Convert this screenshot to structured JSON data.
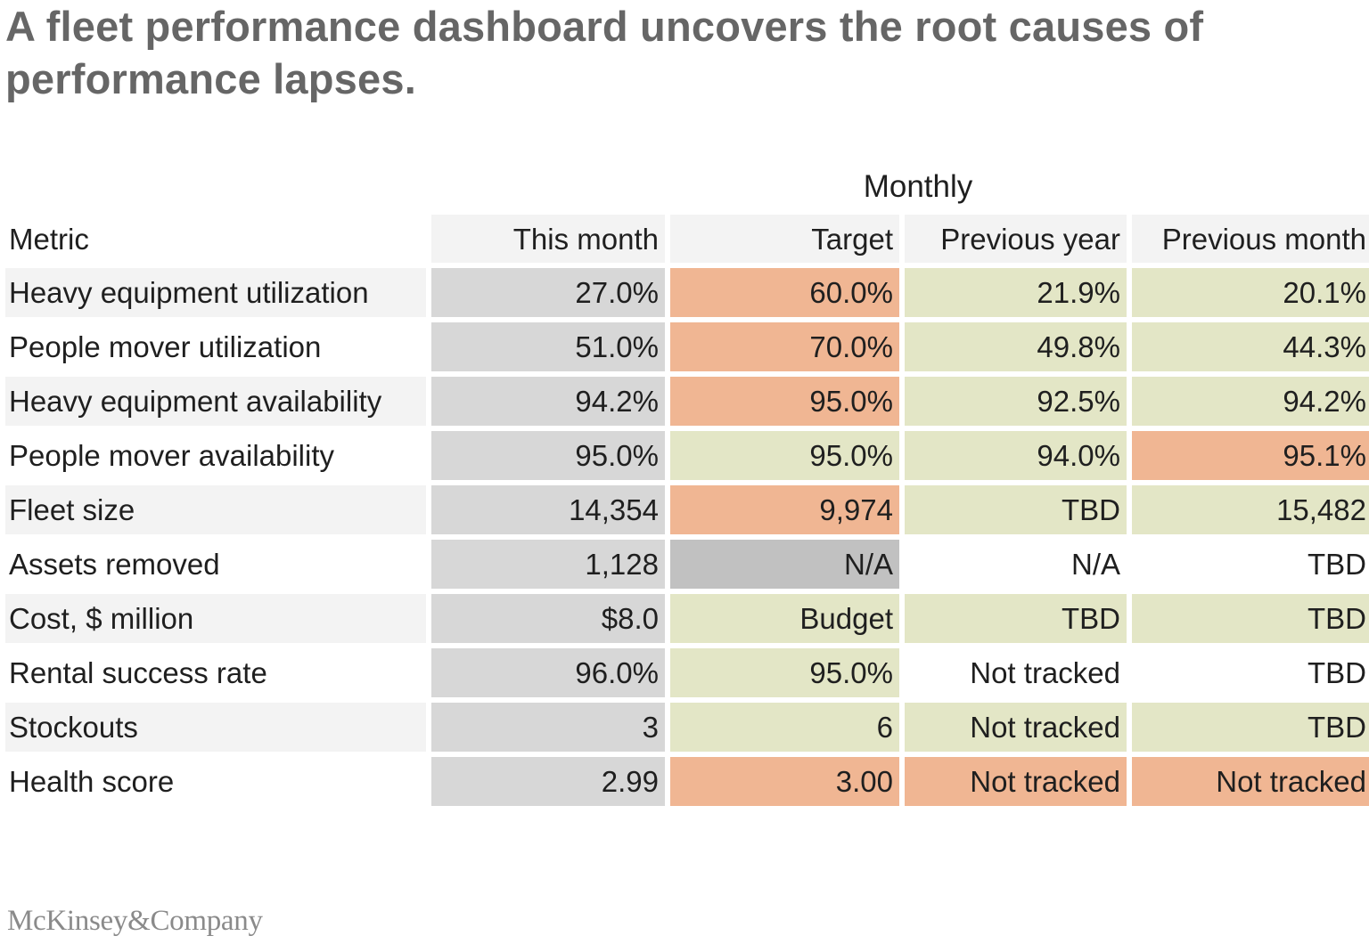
{
  "title": "A fleet performance dashboard uncovers the root causes of performance lapses.",
  "chart_data": {
    "type": "table",
    "group_header": "Monthly",
    "columns": [
      "Metric",
      "This month",
      "Target",
      "Previous year",
      "Previous month"
    ],
    "rows": [
      [
        "Heavy equipment utilization",
        "27.0%",
        "60.0%",
        "21.9%",
        "20.1%"
      ],
      [
        "People mover utilization",
        "51.0%",
        "70.0%",
        "49.8%",
        "44.3%"
      ],
      [
        "Heavy equipment availability",
        "94.2%",
        "95.0%",
        "92.5%",
        "94.2%"
      ],
      [
        "People mover availability",
        "95.0%",
        "95.0%",
        "94.0%",
        "95.1%"
      ],
      [
        "Fleet size",
        "14,354",
        "9,974",
        "TBD",
        "15,482"
      ],
      [
        "Assets removed",
        "1,128",
        "N/A",
        "N/A",
        "TBD"
      ],
      [
        "Cost, $ million",
        "$8.0",
        "Budget",
        "TBD",
        "TBD"
      ],
      [
        "Rental success rate",
        "96.0%",
        "95.0%",
        "Not tracked",
        "TBD"
      ],
      [
        "Stockouts",
        "3",
        "6",
        "Not tracked",
        "TBD"
      ],
      [
        "Health score",
        "2.99",
        "3.00",
        "Not tracked",
        "Not tracked"
      ]
    ],
    "cell_status": [
      [
        "grey",
        "orange",
        "green",
        "green"
      ],
      [
        "grey",
        "orange",
        "green",
        "green"
      ],
      [
        "grey",
        "orange",
        "green",
        "green"
      ],
      [
        "grey",
        "green",
        "green",
        "orange"
      ],
      [
        "grey",
        "orange",
        "green",
        "green"
      ],
      [
        "grey",
        "darkgrey",
        "white",
        "white"
      ],
      [
        "grey",
        "green",
        "green",
        "green"
      ],
      [
        "grey",
        "green",
        "white",
        "white"
      ],
      [
        "grey",
        "green",
        "green",
        "green"
      ],
      [
        "grey",
        "orange",
        "orange",
        "orange"
      ]
    ],
    "status_colors": {
      "grey": "#d7d7d7",
      "darkgrey": "#c1c1c1",
      "orange": "#f0b693",
      "green": "#e3e6c6",
      "white": "#ffffff",
      "header": "#f3f3f3"
    }
  },
  "footer": {
    "logo_text": "McKinsey&Company"
  }
}
